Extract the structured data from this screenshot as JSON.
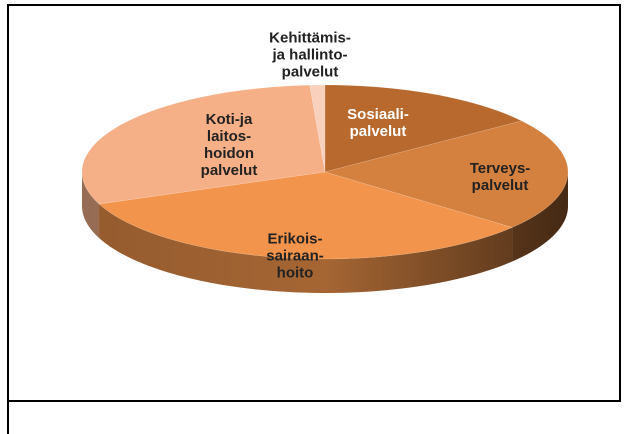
{
  "chart_data": {
    "type": "pie3d",
    "categories": [
      "Sosiaali-\npalvelut",
      "Terveys-\npalvelut",
      "Erikois-\nsairaan-\nhoito",
      "Koti-ja\nlaitos-\nhoidon\npalvelut",
      "Kehittämis-\nja hallinto-\npalvelut"
    ],
    "values": [
      15,
      21,
      33,
      30,
      1
    ],
    "colors": [
      "#b8692e",
      "#d4803f",
      "#f2944b",
      "#f5b088",
      "#f8d0bc"
    ]
  }
}
